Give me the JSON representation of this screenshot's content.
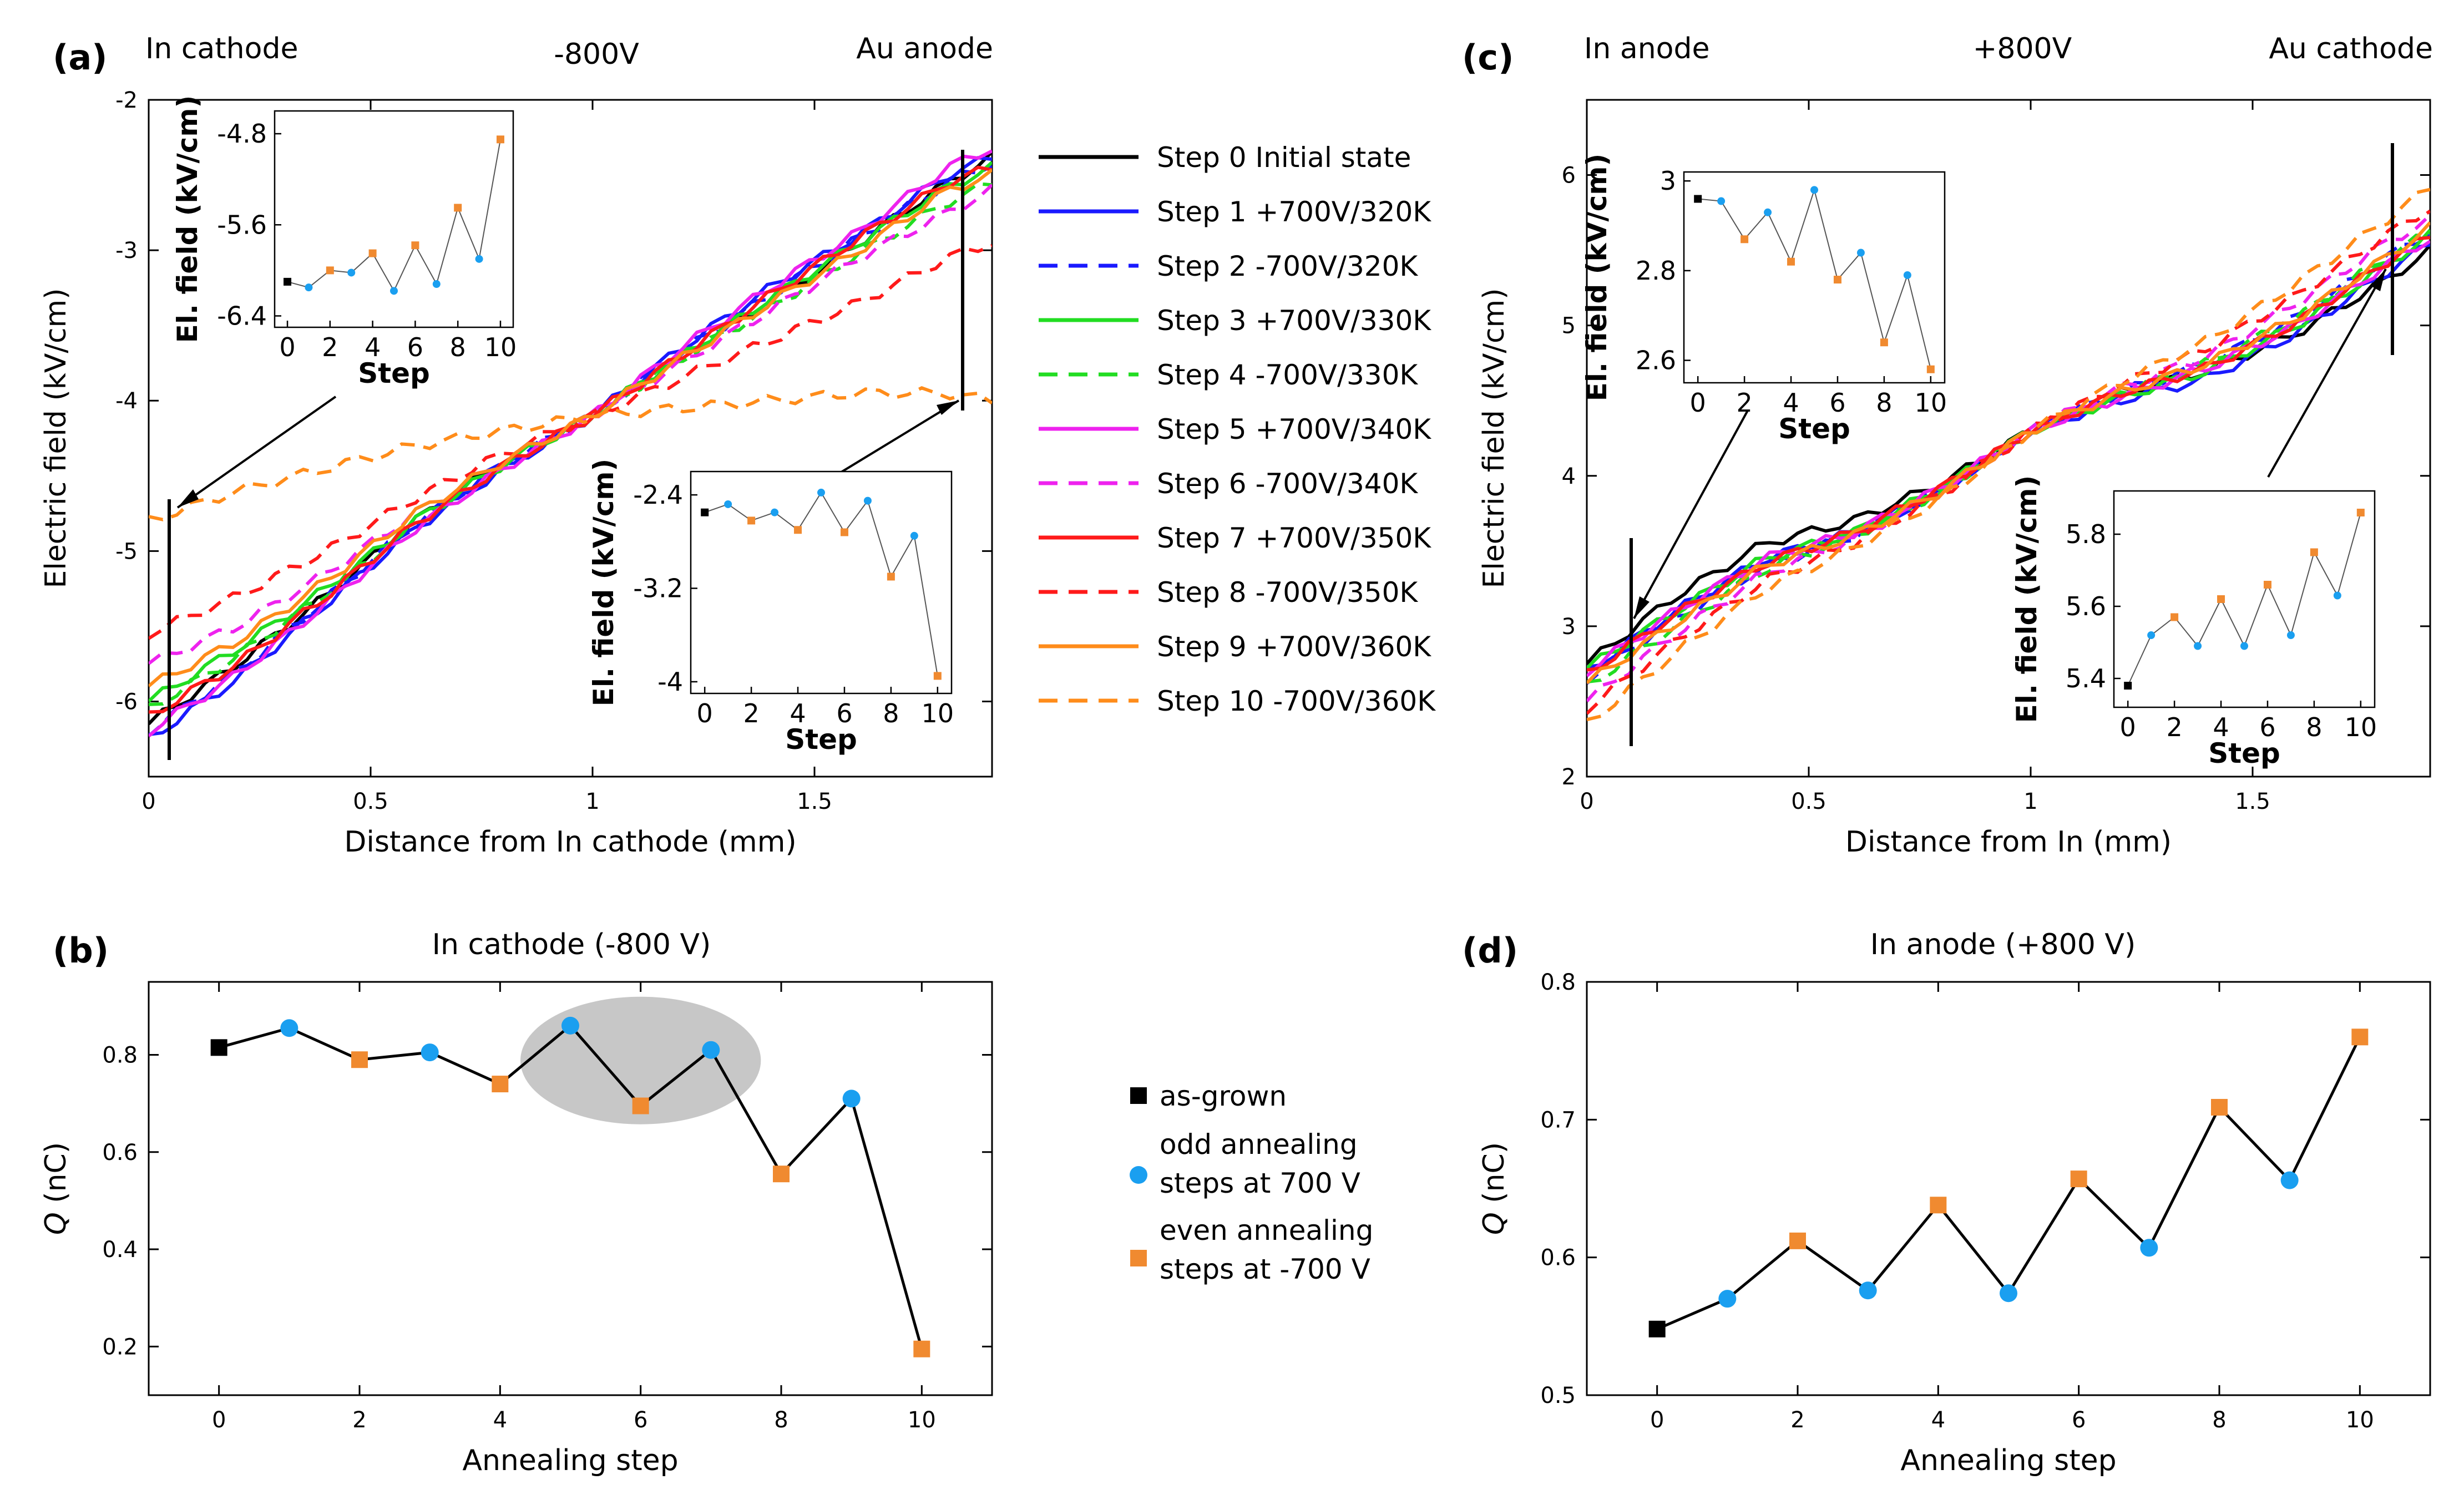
{
  "chart_data": [
    {
      "panel": "(a)",
      "type": "line",
      "header_left": "In cathode",
      "header_center": "-800V",
      "header_right": "Au anode",
      "xlabel": "Distance from In cathode (mm)",
      "ylabel": "Electric field (kV/cm)",
      "xlim": [
        0,
        1.9
      ],
      "ylim": [
        -6.5,
        -2
      ],
      "xticks": [
        0,
        0.5,
        1,
        1.5
      ],
      "yticks": [
        -6,
        -5,
        -4,
        -3,
        -2
      ],
      "x": [
        0,
        0.2,
        0.4,
        0.6,
        0.8,
        1.0,
        1.2,
        1.4,
        1.6,
        1.8,
        1.9
      ],
      "series": [
        {
          "name": "Step 0 Initial state",
          "color": "#000000",
          "dash": "solid",
          "values": [
            -6.15,
            -5.75,
            -5.3,
            -4.8,
            -4.4,
            -4.1,
            -3.7,
            -3.35,
            -2.95,
            -2.55,
            -2.38
          ]
        },
        {
          "name": "Step 1 +700V/320K",
          "color": "#1a1aff",
          "dash": "solid",
          "values": [
            -6.25,
            -5.85,
            -5.35,
            -4.85,
            -4.45,
            -4.1,
            -3.65,
            -3.25,
            -2.9,
            -2.5,
            -2.38
          ]
        },
        {
          "name": "Step 2 -700V/320K",
          "color": "#1a1aff",
          "dash": "dashed",
          "values": [
            -6.2,
            -5.8,
            -5.32,
            -4.82,
            -4.42,
            -4.1,
            -3.68,
            -3.3,
            -2.92,
            -2.55,
            -2.42
          ]
        },
        {
          "name": "Step 3 +700V/330K",
          "color": "#22dd22",
          "dash": "solid",
          "values": [
            -6.0,
            -5.65,
            -5.25,
            -4.8,
            -4.42,
            -4.1,
            -3.7,
            -3.32,
            -2.95,
            -2.58,
            -2.45
          ]
        },
        {
          "name": "Step 4 -700V/330K",
          "color": "#22dd22",
          "dash": "dashed",
          "values": [
            -6.05,
            -5.7,
            -5.28,
            -4.82,
            -4.43,
            -4.1,
            -3.72,
            -3.38,
            -3.02,
            -2.68,
            -2.55
          ]
        },
        {
          "name": "Step 5 +700V/340K",
          "color": "#ee22ee",
          "dash": "solid",
          "values": [
            -6.2,
            -5.82,
            -5.35,
            -4.85,
            -4.45,
            -4.1,
            -3.65,
            -3.25,
            -2.88,
            -2.45,
            -2.32
          ]
        },
        {
          "name": "Step 6 -700V/340K",
          "color": "#ee22ee",
          "dash": "dashed",
          "values": [
            -5.75,
            -5.5,
            -5.15,
            -4.75,
            -4.4,
            -4.1,
            -3.75,
            -3.4,
            -3.05,
            -2.75,
            -2.6
          ]
        },
        {
          "name": "Step 7 +700V/350K",
          "color": "#ff1a1a",
          "dash": "solid",
          "values": [
            -6.1,
            -5.75,
            -5.3,
            -4.82,
            -4.43,
            -4.1,
            -3.7,
            -3.3,
            -2.92,
            -2.55,
            -2.45
          ]
        },
        {
          "name": "Step 8 -700V/350K",
          "color": "#ff1a1a",
          "dash": "dashed",
          "values": [
            -5.55,
            -5.3,
            -5.0,
            -4.65,
            -4.35,
            -4.1,
            -3.85,
            -3.6,
            -3.35,
            -3.05,
            -2.95
          ]
        },
        {
          "name": "Step 9 +700V/360K",
          "color": "#ff8c1a",
          "dash": "solid",
          "values": [
            -5.9,
            -5.6,
            -5.2,
            -4.75,
            -4.4,
            -4.1,
            -3.72,
            -3.35,
            -3.0,
            -2.6,
            -2.5
          ]
        },
        {
          "name": "Step 10 -700V/360K",
          "color": "#ff8c1a",
          "dash": "dashed",
          "values": [
            -4.8,
            -4.6,
            -4.45,
            -4.3,
            -4.2,
            -4.1,
            -4.05,
            -4.0,
            -3.95,
            -3.95,
            -4.0
          ]
        }
      ],
      "insets": [
        {
          "xlabel": "Step",
          "ylabel": "El. field (kV/cm)",
          "xticks": [
            0,
            2,
            4,
            6,
            8,
            10
          ],
          "yticks": [
            -4.8,
            -5.6,
            -6.4
          ],
          "ylim": [
            -6.5,
            -4.6
          ],
          "x": [
            0,
            1,
            2,
            3,
            4,
            5,
            6,
            7,
            8,
            9,
            10
          ],
          "values": [
            -6.1,
            -6.15,
            -6.0,
            -6.02,
            -5.85,
            -6.18,
            -5.78,
            -6.12,
            -5.45,
            -5.9,
            -4.85
          ]
        },
        {
          "xlabel": "Step",
          "ylabel": "El. field (kV/cm)",
          "xticks": [
            0,
            2,
            4,
            6,
            8,
            10
          ],
          "yticks": [
            -2.4,
            -3.2,
            -4
          ],
          "ylim": [
            -4.1,
            -2.2
          ],
          "x": [
            0,
            1,
            2,
            3,
            4,
            5,
            6,
            7,
            8,
            9,
            10
          ],
          "values": [
            -2.55,
            -2.48,
            -2.62,
            -2.55,
            -2.7,
            -2.38,
            -2.72,
            -2.45,
            -3.1,
            -2.75,
            -3.95
          ]
        }
      ]
    },
    {
      "panel": "(b)",
      "type": "scatter",
      "title": "In cathode (-800 V)",
      "xlabel": "Annealing step",
      "ylabel": "Q (nC)",
      "xlim": [
        -1,
        11
      ],
      "ylim": [
        0.1,
        0.95
      ],
      "xticks": [
        0,
        2,
        4,
        6,
        8,
        10
      ],
      "yticks": [
        0.2,
        0.4,
        0.6,
        0.8
      ],
      "x": [
        0,
        1,
        2,
        3,
        4,
        5,
        6,
        7,
        8,
        9,
        10
      ],
      "values": [
        0.815,
        0.855,
        0.79,
        0.805,
        0.74,
        0.86,
        0.695,
        0.81,
        0.555,
        0.71,
        0.195
      ],
      "highlight_steps": [
        5,
        7
      ]
    },
    {
      "panel": "(c)",
      "type": "line",
      "header_left": "In anode",
      "header_center": "+800V",
      "header_right": "Au cathode",
      "xlabel": "Distance from In (mm)",
      "ylabel": "Electric field (kV/cm)",
      "xlim": [
        0,
        1.9
      ],
      "ylim": [
        2,
        6.5
      ],
      "xticks": [
        0,
        0.5,
        1,
        1.5
      ],
      "yticks": [
        2,
        3,
        4,
        5,
        6
      ],
      "x": [
        0,
        0.2,
        0.4,
        0.6,
        0.8,
        1.0,
        1.2,
        1.4,
        1.6,
        1.8,
        1.9
      ],
      "series": [
        {
          "name": "Step 0",
          "color": "#000000",
          "dash": "solid",
          "values": [
            2.75,
            3.2,
            3.55,
            3.7,
            3.95,
            4.3,
            4.55,
            4.7,
            4.95,
            5.3,
            5.5
          ]
        },
        {
          "name": "Step 1",
          "color": "#1a1aff",
          "dash": "solid",
          "values": [
            2.7,
            3.1,
            3.45,
            3.62,
            3.9,
            4.3,
            4.5,
            4.65,
            4.95,
            5.35,
            5.55
          ]
        },
        {
          "name": "Step 2",
          "color": "#1a1aff",
          "dash": "dashed",
          "values": [
            2.65,
            3.05,
            3.4,
            3.6,
            3.9,
            4.3,
            4.55,
            4.75,
            5.05,
            5.45,
            5.62
          ]
        },
        {
          "name": "Step 3",
          "color": "#22dd22",
          "dash": "solid",
          "values": [
            2.72,
            3.1,
            3.45,
            3.62,
            3.92,
            4.3,
            4.52,
            4.7,
            5.0,
            5.4,
            5.6
          ]
        },
        {
          "name": "Step 4",
          "color": "#22dd22",
          "dash": "dashed",
          "values": [
            2.6,
            3.0,
            3.38,
            3.6,
            3.9,
            4.3,
            4.55,
            4.75,
            5.05,
            5.45,
            5.62
          ]
        },
        {
          "name": "Step 5",
          "color": "#ee22ee",
          "dash": "solid",
          "values": [
            2.7,
            3.1,
            3.45,
            3.62,
            3.92,
            4.3,
            4.52,
            4.72,
            5.0,
            5.4,
            5.58
          ]
        },
        {
          "name": "Step 6",
          "color": "#ee22ee",
          "dash": "dashed",
          "values": [
            2.5,
            2.95,
            3.35,
            3.58,
            3.9,
            4.3,
            4.58,
            4.8,
            5.15,
            5.55,
            5.7
          ]
        },
        {
          "name": "Step 7",
          "color": "#ff1a1a",
          "dash": "solid",
          "values": [
            2.68,
            3.08,
            3.42,
            3.62,
            3.92,
            4.3,
            4.55,
            4.72,
            5.02,
            5.42,
            5.6
          ]
        },
        {
          "name": "Step 8",
          "color": "#ff1a1a",
          "dash": "dashed",
          "values": [
            2.45,
            2.9,
            3.3,
            3.55,
            3.88,
            4.3,
            4.6,
            4.85,
            5.2,
            5.6,
            5.78
          ]
        },
        {
          "name": "Step 9",
          "color": "#ff8c1a",
          "dash": "solid",
          "values": [
            2.62,
            3.02,
            3.4,
            3.6,
            3.9,
            4.3,
            4.55,
            4.75,
            5.05,
            5.45,
            5.65
          ]
        },
        {
          "name": "Step 10",
          "color": "#ff8c1a",
          "dash": "dashed",
          "values": [
            2.35,
            2.82,
            3.25,
            3.52,
            3.85,
            4.3,
            4.62,
            4.9,
            5.28,
            5.7,
            5.92
          ]
        }
      ],
      "insets": [
        {
          "xlabel": "Step",
          "ylabel": "El. field (kV/cm)",
          "xticks": [
            0,
            2,
            4,
            6,
            8,
            10
          ],
          "yticks": [
            3,
            2.8,
            2.6
          ],
          "ylim": [
            2.55,
            3.02
          ],
          "x": [
            0,
            1,
            2,
            3,
            4,
            5,
            6,
            7,
            8,
            9,
            10
          ],
          "values": [
            2.96,
            2.955,
            2.87,
            2.93,
            2.82,
            2.98,
            2.78,
            2.84,
            2.64,
            2.79,
            2.58
          ]
        },
        {
          "xlabel": "Step",
          "ylabel": "El. field (kV/cm)",
          "xticks": [
            0,
            2,
            4,
            6,
            8,
            10
          ],
          "yticks": [
            5.4,
            5.6,
            5.8
          ],
          "ylim": [
            5.32,
            5.92
          ],
          "x": [
            0,
            1,
            2,
            3,
            4,
            5,
            6,
            7,
            8,
            9,
            10
          ],
          "values": [
            5.38,
            5.52,
            5.57,
            5.49,
            5.62,
            5.49,
            5.66,
            5.52,
            5.75,
            5.63,
            5.86
          ]
        }
      ]
    },
    {
      "panel": "(d)",
      "type": "scatter",
      "title": "In anode (+800 V)",
      "xlabel": "Annealing step",
      "ylabel": "Q (nC)",
      "xlim": [
        -1,
        11
      ],
      "ylim": [
        0.5,
        0.8
      ],
      "xticks": [
        0,
        2,
        4,
        6,
        8,
        10
      ],
      "yticks": [
        0.5,
        0.6,
        0.7,
        0.8
      ],
      "x": [
        0,
        1,
        2,
        3,
        4,
        5,
        6,
        7,
        8,
        9,
        10
      ],
      "values": [
        0.548,
        0.57,
        0.612,
        0.576,
        0.638,
        0.574,
        0.657,
        0.607,
        0.709,
        0.656,
        0.76
      ]
    }
  ],
  "legend_bottom": [
    {
      "label": "as-grown",
      "marker": "square",
      "color": "#000000"
    },
    {
      "label": "odd annealing steps  at 700 V",
      "marker": "circle",
      "color": "#1a9ff0"
    },
    {
      "label": "even annealing steps  at -700 V",
      "marker": "square",
      "color": "#f08a30"
    }
  ],
  "marker_colors": {
    "initial": "#000000",
    "odd": "#1a9ff0",
    "even": "#f08a30"
  }
}
